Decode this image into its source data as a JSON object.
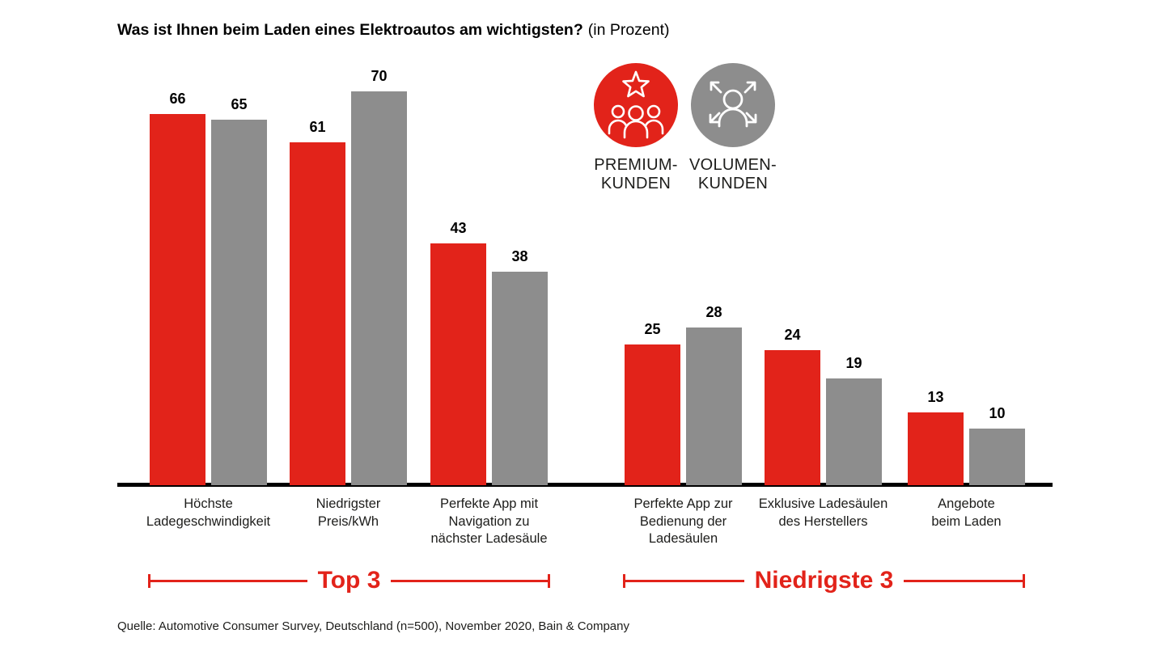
{
  "title": {
    "main": "Was ist Ihnen beim Laden eines Elektroautos am wichtigsten?",
    "suffix": "(in Prozent)"
  },
  "legend": {
    "items": [
      {
        "id": "premium",
        "label_line1": "PREMIUM-",
        "label_line2": "KUNDEN",
        "color": "#e2231a",
        "icon": "star-people-icon"
      },
      {
        "id": "volumen",
        "label_line1": "VOLUMEN-",
        "label_line2": "KUNDEN",
        "color": "#8d8d8d",
        "icon": "person-arrows-icon"
      }
    ]
  },
  "chart_data": {
    "type": "bar",
    "title": "Was ist Ihnen beim Laden eines Elektroautos am wichtigsten? (in Prozent)",
    "unit": "Prozent",
    "categories": [
      "Höchste Ladegeschwindigkeit",
      "Niedrigster Preis/kWh",
      "Perfekte App mit Navigation zu nächster Ladesäule",
      "Perfekte App zur Bedienung der Ladesäulen",
      "Exklusive Ladesäulen des Herstellers",
      "Angebote beim Laden"
    ],
    "category_labels_multiline": [
      "Höchste\nLadegeschwindigkeit",
      "Niedrigster\nPreis/kWh",
      "Perfekte App mit\nNavigation zu\nnächster Ladesäule",
      "Perfekte App zur\nBedienung der\nLadesäulen",
      "Exklusive Ladesäulen\ndes Herstellers",
      "Angebote\nbeim Laden"
    ],
    "series": [
      {
        "name": "Premium-Kunden",
        "color": "#e2231a",
        "values": [
          66,
          61,
          43,
          25,
          24,
          13
        ]
      },
      {
        "name": "Volumen-Kunden",
        "color": "#8d8d8d",
        "values": [
          65,
          70,
          38,
          28,
          19,
          10
        ]
      }
    ],
    "ylim": [
      0,
      75
    ],
    "grid": false,
    "value_labels": true,
    "legend_position": "top-center",
    "group_annotations": [
      {
        "label": "Top 3",
        "span": [
          0,
          2
        ]
      },
      {
        "label": "Niedrigste 3",
        "span": [
          3,
          5
        ]
      }
    ]
  },
  "source": "Quelle: Automotive Consumer Survey, Deutschland (n=500), November 2020, Bain & Company"
}
